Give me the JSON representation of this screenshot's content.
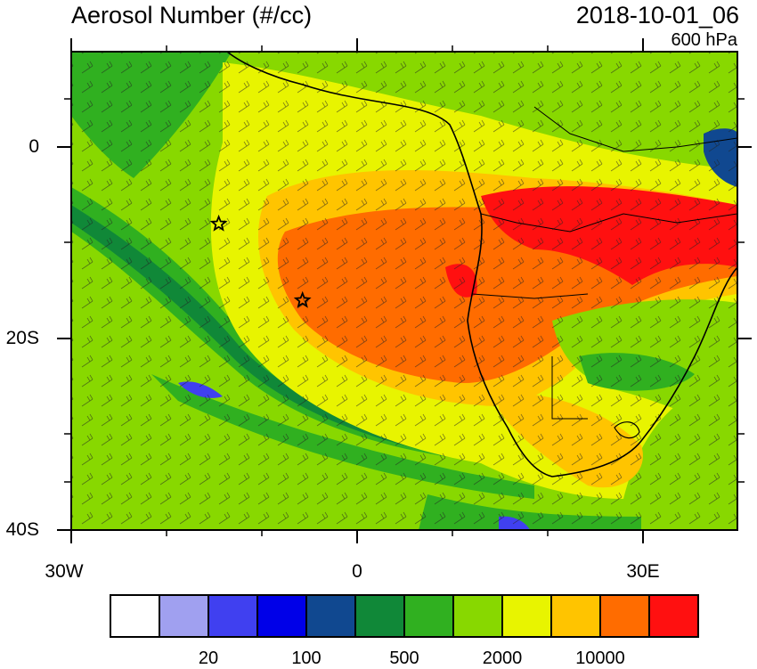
{
  "title": "Aerosol Number (#/cc)",
  "datetime": "2018-10-01_06",
  "level": "600 hPa",
  "axes": {
    "lat_ticks": [
      "0",
      "20S",
      "40S"
    ],
    "lon_ticks": [
      "30W",
      "0",
      "30E"
    ],
    "lat_range": [
      -40,
      10
    ],
    "lon_range": [
      -30,
      40
    ]
  },
  "colorbar": {
    "colors": [
      "#ffffff",
      "#a0a0f0",
      "#4040f0",
      "#0000e8",
      "#104890",
      "#108838",
      "#30b020",
      "#88d800",
      "#e8f400",
      "#ffc400",
      "#ff6c00",
      "#ff1010"
    ],
    "labels": [
      "20",
      "100",
      "500",
      "2000",
      "10000"
    ]
  },
  "markers": [
    {
      "name": "star",
      "lat": -8,
      "lon": -14.5
    },
    {
      "name": "star",
      "lat": -16,
      "lon": -5.7
    }
  ],
  "icons": {
    "marker": "star-marker-icon",
    "wind": "wind-barb-icon"
  }
}
